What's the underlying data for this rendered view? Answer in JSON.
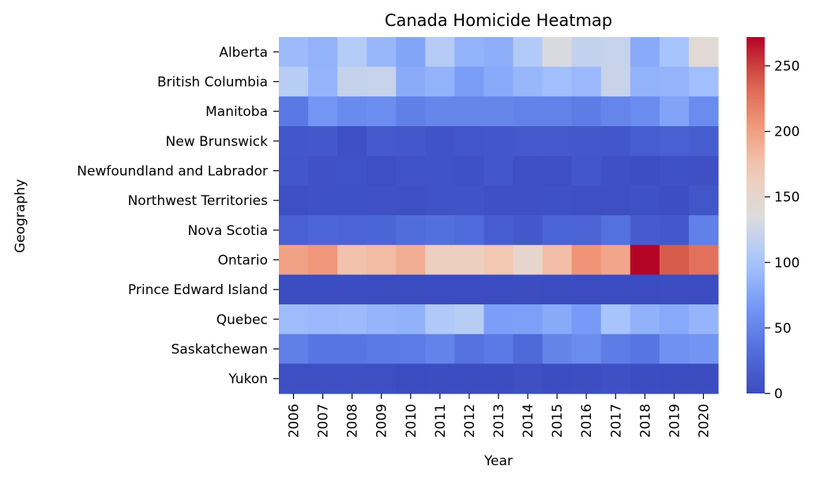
{
  "chart_data": {
    "type": "heatmap",
    "title": "Canada Homicide Heatmap",
    "xlabel": "Year",
    "ylabel": "Geography",
    "x": [
      "2006",
      "2007",
      "2008",
      "2009",
      "2010",
      "2011",
      "2012",
      "2013",
      "2014",
      "2015",
      "2016",
      "2017",
      "2018",
      "2019",
      "2020"
    ],
    "y": [
      "Alberta",
      "British Columbia",
      "Manitoba",
      "New Brunswick",
      "Newfoundland and Labrador",
      "Northwest Territories",
      "Nova Scotia",
      "Ontario",
      "Prince Edward Island",
      "Quebec",
      "Saskatchewan",
      "Yukon"
    ],
    "values": [
      [
        93,
        86,
        108,
        90,
        76,
        109,
        86,
        83,
        107,
        133,
        118,
        121,
        80,
        100,
        143
      ],
      [
        111,
        88,
        120,
        121,
        81,
        86,
        70,
        80,
        90,
        96,
        91,
        122,
        86,
        88,
        96
      ],
      [
        41,
        64,
        55,
        58,
        46,
        52,
        52,
        52,
        48,
        48,
        44,
        51,
        56,
        75,
        57
      ],
      [
        10,
        12,
        4,
        14,
        11,
        8,
        9,
        10,
        13,
        13,
        12,
        10,
        16,
        20,
        17
      ],
      [
        9,
        5,
        7,
        3,
        7,
        8,
        6,
        10,
        3,
        3,
        10,
        4,
        2,
        6,
        4
      ],
      [
        3,
        6,
        6,
        5,
        4,
        7,
        8,
        4,
        4,
        6,
        3,
        3,
        6,
        2,
        9
      ],
      [
        20,
        25,
        22,
        24,
        31,
        34,
        28,
        16,
        12,
        23,
        22,
        35,
        15,
        12,
        47
      ],
      [
        198,
        205,
        176,
        180,
        190,
        162,
        162,
        172,
        151,
        179,
        207,
        195,
        272,
        240,
        228
      ],
      [
        1,
        1,
        1,
        0,
        0,
        0,
        0,
        0,
        1,
        0,
        0,
        0,
        0,
        1,
        0
      ],
      [
        94,
        91,
        93,
        88,
        85,
        106,
        111,
        71,
        72,
        80,
        68,
        100,
        85,
        79,
        88
      ],
      [
        46,
        39,
        39,
        42,
        43,
        49,
        36,
        42,
        27,
        50,
        57,
        44,
        38,
        61,
        63
      ],
      [
        3,
        3,
        3,
        3,
        0,
        1,
        1,
        1,
        3,
        1,
        2,
        4,
        1,
        0,
        0
      ]
    ],
    "colorbar": {
      "min": 0,
      "max": 272,
      "ticks": [
        0,
        50,
        100,
        150,
        200,
        250
      ],
      "colormap": "coolwarm"
    },
    "grid": false
  }
}
